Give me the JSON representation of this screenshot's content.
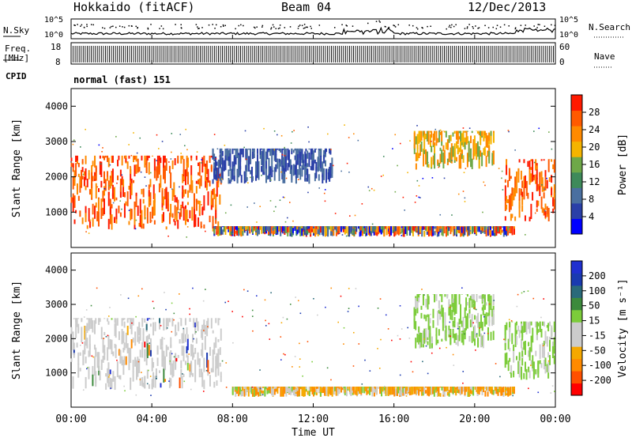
{
  "header": {
    "title": "Hokkaido (fitACF)",
    "beam": "Beam 04",
    "date": "12/Dec/2013"
  },
  "left_labels": {
    "nsky": "N.Sky",
    "freq_line1": "Freq.",
    "freq_line2": "[MHz]",
    "cpid": "CPID"
  },
  "right_labels": {
    "nsearch": "N.Search",
    "nave": "Nave"
  },
  "noise_panel": {
    "ticks": [
      "10^5",
      "10^0"
    ],
    "right_ticks": [
      "10^5",
      "10^0"
    ]
  },
  "freq_panel": {
    "left_ticks": [
      "18",
      "8"
    ],
    "right_ticks": [
      "60",
      "0"
    ]
  },
  "cpid_text": "normal (fast) 151",
  "colors": {
    "power_scale": [
      "#0000ff",
      "#2a3fa8",
      "#4a6fa0",
      "#3e8a5a",
      "#6ea848",
      "#f5b400",
      "#ff8a00",
      "#ff5a00",
      "#ff1a00"
    ],
    "velocity_scale": [
      "#ff0000",
      "#ff5000",
      "#ff8a00",
      "#f5a800",
      "#cccccc",
      "#cccccc",
      "#7ccc3a",
      "#3c8a3c",
      "#2a6a7a",
      "#1a3ab0",
      "#2030d0"
    ]
  },
  "chart_data": [
    {
      "type": "heatmap",
      "name": "power",
      "ylabel": "Slant Range [km]",
      "yticks": [
        "1000",
        "2000",
        "3000",
        "4000"
      ],
      "ylim": [
        0,
        4500
      ],
      "colorbar_label": "Power [dB]",
      "colorbar_ticks": [
        "4",
        "8",
        "12",
        "16",
        "20",
        "24",
        "28"
      ],
      "regions": [
        {
          "t_start": 0,
          "t_end": 7.5,
          "range_min": 500,
          "range_max": 2600,
          "level": "high"
        },
        {
          "t_start": 7,
          "t_end": 13,
          "range_min": 1800,
          "range_max": 2800,
          "level": "low"
        },
        {
          "t_start": 7,
          "t_end": 22,
          "range_min": 300,
          "range_max": 600,
          "level": "mixed"
        },
        {
          "t_start": 17,
          "t_end": 21,
          "range_min": 2200,
          "range_max": 3300,
          "level": "mid"
        },
        {
          "t_start": 21.5,
          "t_end": 24,
          "range_min": 700,
          "range_max": 2500,
          "level": "high"
        }
      ]
    },
    {
      "type": "heatmap",
      "name": "velocity",
      "ylabel": "Slant Range [km]",
      "yticks": [
        "1000",
        "2000",
        "3000",
        "4000"
      ],
      "ylim": [
        0,
        4500
      ],
      "colorbar_label": "Velocity [m s⁻¹]",
      "colorbar_ticks": [
        "200",
        "100",
        "50",
        "15",
        "-15",
        "-50",
        "-100",
        "-200"
      ],
      "xlabel": "Time UT",
      "xticks": [
        "00:00",
        "04:00",
        "08:00",
        "12:00",
        "16:00",
        "20:00",
        "00:00"
      ],
      "xlim": [
        0,
        24
      ],
      "regions": [
        {
          "t_start": 0,
          "t_end": 7.5,
          "range_min": 500,
          "range_max": 2600,
          "level": "near-zero"
        },
        {
          "t_start": 8,
          "t_end": 22,
          "range_min": 300,
          "range_max": 600,
          "level": "negative"
        },
        {
          "t_start": 17,
          "t_end": 21,
          "range_min": 1700,
          "range_max": 3300,
          "level": "positive"
        },
        {
          "t_start": 21.5,
          "t_end": 24,
          "range_min": 800,
          "range_max": 2500,
          "level": "positive"
        }
      ]
    }
  ]
}
